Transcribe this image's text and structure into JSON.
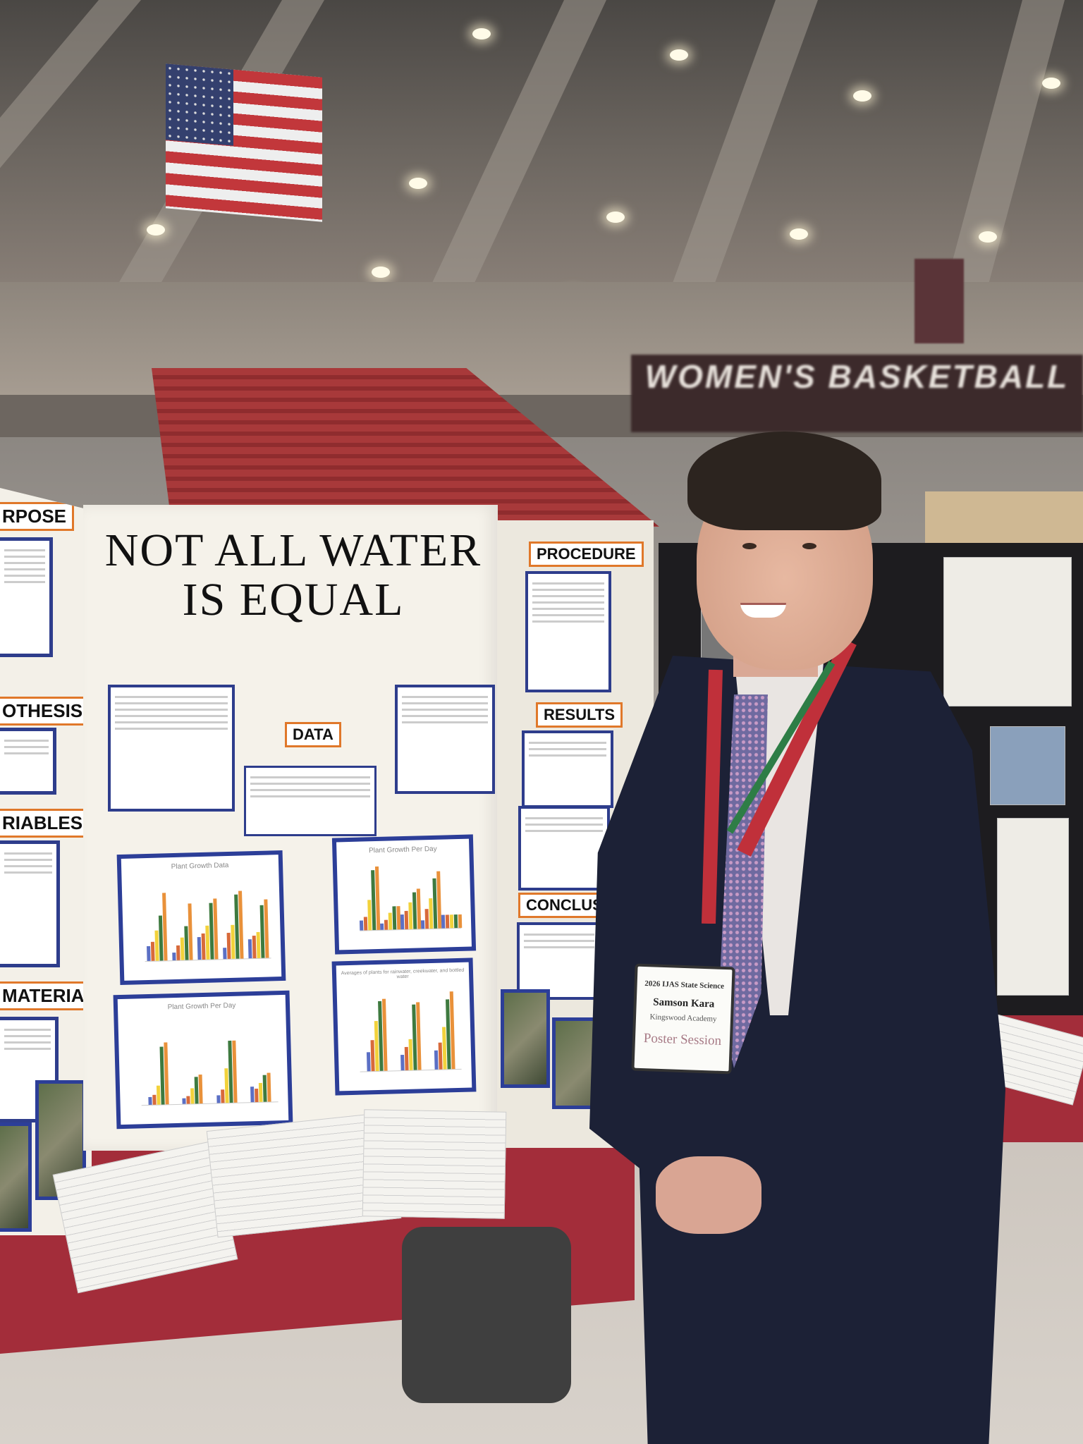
{
  "scene": {
    "accent_colors": {
      "board_border": "#2c3e98",
      "header_orange": "#e0782a",
      "tablecloth": "#a32d3a",
      "suit": "#1c2136"
    }
  },
  "arena": {
    "banner_text": "WOMEN'S BASKETBALL"
  },
  "board": {
    "title_line1": "NOT ALL WATER",
    "title_line2": "IS EQUAL",
    "headers": {
      "purpose": "RPOSE",
      "hypothesis": "OTHESIS",
      "variables": "RIABLES",
      "materials": "MATERIALS",
      "data": "DATA",
      "procedure": "PROCEDURE",
      "results": "RESULTS",
      "conclusion": "CONCLUSION"
    },
    "charts": [
      {
        "title": "Plant Growth Data",
        "groups": [
          [
            8,
            10,
            16,
            24,
            36
          ],
          [
            4,
            8,
            12,
            18,
            30
          ],
          [
            12,
            14,
            18,
            30,
            32
          ],
          [
            6,
            14,
            18,
            34,
            36
          ],
          [
            10,
            12,
            14,
            28,
            31
          ]
        ]
      },
      {
        "title": "Plant Growth Per Day",
        "groups": [
          [
            6,
            8,
            18,
            36,
            38
          ],
          [
            4,
            6,
            10,
            14,
            14
          ],
          [
            9,
            11,
            16,
            22,
            24
          ],
          [
            5,
            12,
            18,
            30,
            34
          ],
          [
            8,
            8,
            8,
            8,
            8
          ]
        ]
      },
      {
        "title": "Plant Growth Per Day",
        "groups": [
          [
            4,
            5,
            10,
            30,
            32
          ],
          [
            3,
            4,
            8,
            14,
            15
          ],
          [
            4,
            7,
            18,
            32,
            32
          ],
          [
            8,
            7,
            10,
            14,
            15
          ]
        ]
      },
      {
        "title": "Averages of plants for rainwater, creekwater, and bottled water",
        "groups": [
          [
            10,
            16,
            26,
            36,
            37
          ],
          [
            8,
            12,
            16,
            34,
            35
          ],
          [
            10,
            14,
            22,
            36,
            40
          ]
        ]
      }
    ],
    "series_colors": [
      "#5b6fc4",
      "#d86a3a",
      "#f2d23b",
      "#3e7a3f",
      "#e9913a"
    ]
  },
  "badge": {
    "event": "2026 IJAS State Science",
    "name": "Samson Kara",
    "school": "Kingswood Academy",
    "session": "Poster Session"
  }
}
